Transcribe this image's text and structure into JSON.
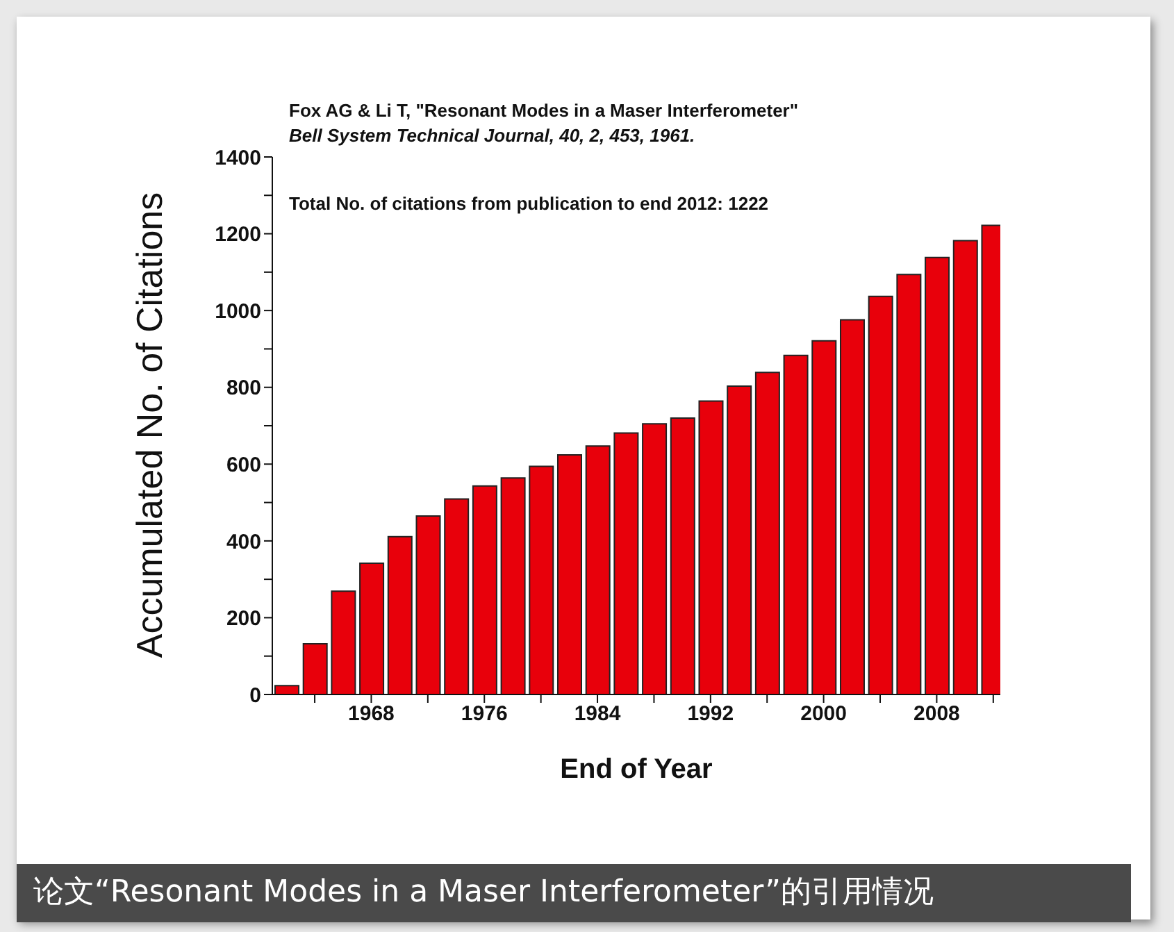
{
  "chart_data": {
    "type": "bar",
    "title": "Fox AG & Li T, \"Resonant Modes in a Maser Interferometer\"",
    "subtitle": "Bell System Technical Journal, 40, 2, 453, 1961.",
    "xlabel": "End of Year",
    "ylabel": "Accumulated No. of Citations",
    "annotations": [
      "Total No. of citations from publication to end 2012: 1222",
      "论文“Resonant Modes in a Maser Interferometer”的引用情况"
    ],
    "x": [
      1962,
      1964,
      1966,
      1968,
      1970,
      1972,
      1974,
      1976,
      1978,
      1980,
      1982,
      1984,
      1986,
      1988,
      1990,
      1992,
      1994,
      1996,
      1998,
      2000,
      2002,
      2004,
      2006,
      2008,
      2010,
      2012
    ],
    "values": [
      23,
      132,
      269,
      342,
      411,
      465,
      509,
      543,
      564,
      594,
      624,
      647,
      681,
      705,
      720,
      764,
      803,
      839,
      883,
      921,
      976,
      1037,
      1094,
      1138,
      1182,
      1222
    ],
    "color": "#e8000b",
    "xlim": [
      1961,
      2012.5
    ],
    "xticks": [
      {
        "value": 1964,
        "label": null
      },
      1968,
      {
        "value": 1972,
        "label": null
      },
      1976,
      {
        "value": 1980,
        "label": null
      },
      1984,
      {
        "value": 1988,
        "label": null
      },
      1992,
      {
        "value": 1996,
        "label": null
      },
      2000,
      {
        "value": 2004,
        "label": null
      },
      2008,
      {
        "value": 2012,
        "label": null
      }
    ],
    "ylim": [
      0,
      1400
    ],
    "yticks": [
      0,
      {
        "value": 100,
        "label": null
      },
      200,
      {
        "value": 300,
        "label": null
      },
      400,
      {
        "value": 500,
        "label": null
      },
      600,
      {
        "value": 700,
        "label": null
      },
      800,
      {
        "value": 900,
        "label": null
      },
      1000,
      {
        "value": 1100,
        "label": null
      },
      1200,
      {
        "value": 1300,
        "label": null
      },
      1400
    ],
    "grid": false,
    "legend": false
  }
}
